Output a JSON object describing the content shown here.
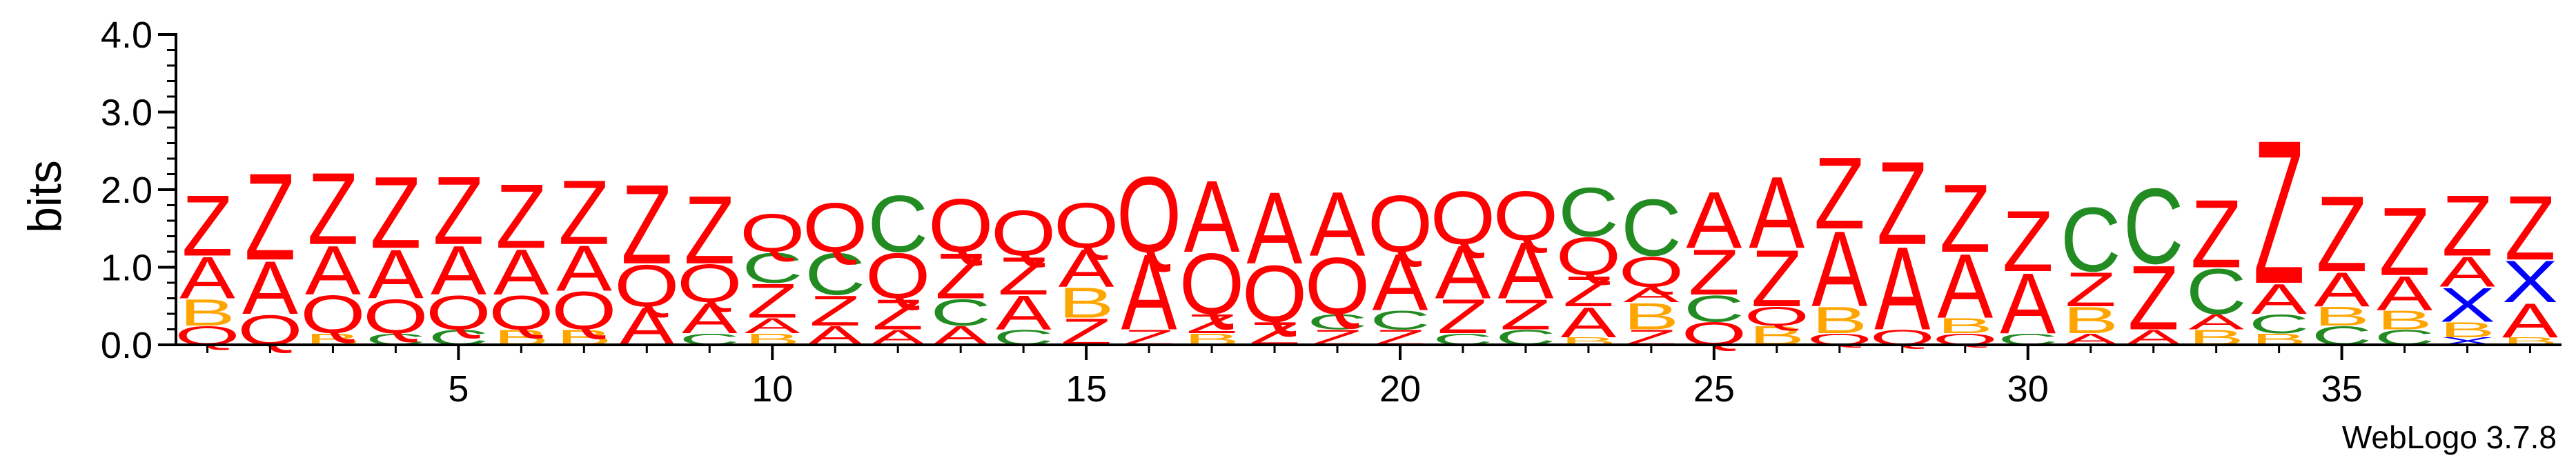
{
  "chart_data": {
    "type": "sequence-logo",
    "ylabel": "bits",
    "ylim": [
      0,
      4
    ],
    "yticks": [
      "0.0",
      "1.0",
      "2.0",
      "3.0",
      "4.0"
    ],
    "xlim": [
      0.5,
      38.5
    ],
    "xticks": [
      5,
      10,
      15,
      20,
      25,
      30,
      35
    ],
    "footer": "WebLogo 3.7.8",
    "colors": {
      "Z": "#ff0000",
      "A": "#ff0000",
      "Q": "#ff0000",
      "C": "#228b22",
      "B": "#ffa500",
      "X": "#0000ff"
    },
    "positions": [
      {
        "pos": 1,
        "stack": [
          [
            "Q",
            0.25
          ],
          [
            "B",
            0.35
          ],
          [
            "A",
            0.55
          ],
          [
            "Z",
            0.8
          ]
        ]
      },
      {
        "pos": 2,
        "stack": [
          [
            "Q",
            0.4
          ],
          [
            "A",
            0.7
          ],
          [
            "Z",
            1.15
          ]
        ]
      },
      {
        "pos": 3,
        "stack": [
          [
            "B",
            0.15
          ],
          [
            "Q",
            0.5
          ],
          [
            "A",
            0.65
          ],
          [
            "Z",
            0.95
          ]
        ]
      },
      {
        "pos": 4,
        "stack": [
          [
            "C",
            0.15
          ],
          [
            "Q",
            0.45
          ],
          [
            "A",
            0.65
          ],
          [
            "Z",
            0.95
          ]
        ]
      },
      {
        "pos": 5,
        "stack": [
          [
            "C",
            0.2
          ],
          [
            "Q",
            0.45
          ],
          [
            "A",
            0.65
          ],
          [
            "Z",
            0.9
          ]
        ]
      },
      {
        "pos": 6,
        "stack": [
          [
            "B",
            0.2
          ],
          [
            "Q",
            0.45
          ],
          [
            "A",
            0.6
          ],
          [
            "Z",
            0.85
          ]
        ]
      },
      {
        "pos": 7,
        "stack": [
          [
            "B",
            0.2
          ],
          [
            "Q",
            0.5
          ],
          [
            "A",
            0.6
          ],
          [
            "Z",
            0.85
          ]
        ]
      },
      {
        "pos": 8,
        "stack": [
          [
            "A",
            0.5
          ],
          [
            "Q",
            0.55
          ],
          [
            "Z",
            1.05
          ]
        ]
      },
      {
        "pos": 9,
        "stack": [
          [
            "C",
            0.15
          ],
          [
            "A",
            0.4
          ],
          [
            "Q",
            0.5
          ],
          [
            "Z",
            0.9
          ]
        ]
      },
      {
        "pos": 10,
        "stack": [
          [
            "B",
            0.15
          ],
          [
            "A",
            0.2
          ],
          [
            "Z",
            0.45
          ],
          [
            "C",
            0.4
          ],
          [
            "Q",
            0.5
          ]
        ]
      },
      {
        "pos": 11,
        "stack": [
          [
            "A",
            0.25
          ],
          [
            "Z",
            0.4
          ],
          [
            "C",
            0.55
          ],
          [
            "Q",
            0.65
          ]
        ]
      },
      {
        "pos": 12,
        "stack": [
          [
            "A",
            0.2
          ],
          [
            "Z",
            0.4
          ],
          [
            "Q",
            0.6
          ],
          [
            "C",
            0.75
          ]
        ]
      },
      {
        "pos": 13,
        "stack": [
          [
            "A",
            0.25
          ],
          [
            "C",
            0.35
          ],
          [
            "Z",
            0.6
          ],
          [
            "Q",
            0.7
          ]
        ]
      },
      {
        "pos": 14,
        "stack": [
          [
            "C",
            0.2
          ],
          [
            "A",
            0.45
          ],
          [
            "Z",
            0.5
          ],
          [
            "Q",
            0.6
          ]
        ]
      },
      {
        "pos": 15,
        "stack": [
          [
            "Z",
            0.35
          ],
          [
            "B",
            0.4
          ],
          [
            "A",
            0.5
          ],
          [
            "Q",
            0.6
          ]
        ]
      },
      {
        "pos": 16,
        "stack": [
          [
            "Z",
            0.2
          ],
          [
            "A",
            1.0
          ],
          [
            "Q",
            1.0
          ]
        ]
      },
      {
        "pos": 17,
        "stack": [
          [
            "B",
            0.15
          ],
          [
            "Z",
            0.25
          ],
          [
            "Q",
            0.8
          ],
          [
            "A",
            0.95
          ]
        ]
      },
      {
        "pos": 18,
        "stack": [
          [
            "Z",
            0.3
          ],
          [
            "Q",
            0.75
          ],
          [
            "A",
            0.95
          ]
        ]
      },
      {
        "pos": 19,
        "stack": [
          [
            "Z",
            0.2
          ],
          [
            "C",
            0.2
          ],
          [
            "Q",
            0.75
          ],
          [
            "A",
            0.85
          ]
        ]
      },
      {
        "pos": 20,
        "stack": [
          [
            "Z",
            0.2
          ],
          [
            "C",
            0.25
          ],
          [
            "A",
            0.75
          ],
          [
            "Q",
            0.75
          ]
        ]
      },
      {
        "pos": 21,
        "stack": [
          [
            "C",
            0.15
          ],
          [
            "Z",
            0.45
          ],
          [
            "A",
            0.7
          ],
          [
            "Q",
            0.7
          ]
        ]
      },
      {
        "pos": 22,
        "stack": [
          [
            "C",
            0.2
          ],
          [
            "Z",
            0.4
          ],
          [
            "A",
            0.75
          ],
          [
            "Q",
            0.65
          ]
        ]
      },
      {
        "pos": 23,
        "stack": [
          [
            "B",
            0.1
          ],
          [
            "A",
            0.4
          ],
          [
            "Z",
            0.4
          ],
          [
            "Q",
            0.5
          ],
          [
            "C",
            0.65
          ]
        ]
      },
      {
        "pos": 24,
        "stack": [
          [
            "Z",
            0.2
          ],
          [
            "B",
            0.35
          ],
          [
            "A",
            0.2
          ],
          [
            "Q",
            0.4
          ],
          [
            "C",
            0.75
          ]
        ]
      },
      {
        "pos": 25,
        "stack": [
          [
            "Q",
            0.3
          ],
          [
            "C",
            0.35
          ],
          [
            "Z",
            0.6
          ],
          [
            "A",
            0.75
          ]
        ]
      },
      {
        "pos": 26,
        "stack": [
          [
            "B",
            0.25
          ],
          [
            "Q",
            0.25
          ],
          [
            "Z",
            0.75
          ],
          [
            "A",
            0.95
          ]
        ]
      },
      {
        "pos": 27,
        "stack": [
          [
            "Q",
            0.15
          ],
          [
            "B",
            0.35
          ],
          [
            "A",
            1.0
          ],
          [
            "Z",
            0.95
          ]
        ]
      },
      {
        "pos": 28,
        "stack": [
          [
            "Q",
            0.2
          ],
          [
            "A",
            1.1
          ],
          [
            "Z",
            1.1
          ]
        ]
      },
      {
        "pos": 29,
        "stack": [
          [
            "Q",
            0.15
          ],
          [
            "B",
            0.2
          ],
          [
            "A",
            0.85
          ],
          [
            "Z",
            0.9
          ]
        ]
      },
      {
        "pos": 30,
        "stack": [
          [
            "C",
            0.15
          ],
          [
            "A",
            0.8
          ],
          [
            "Z",
            0.8
          ]
        ]
      },
      {
        "pos": 31,
        "stack": [
          [
            "A",
            0.15
          ],
          [
            "B",
            0.35
          ],
          [
            "Z",
            0.45
          ],
          [
            "C",
            0.85
          ]
        ]
      },
      {
        "pos": 32,
        "stack": [
          [
            "A",
            0.2
          ],
          [
            "Z",
            0.85
          ],
          [
            "C",
            1.0
          ]
        ]
      },
      {
        "pos": 33,
        "stack": [
          [
            "B",
            0.2
          ],
          [
            "A",
            0.2
          ],
          [
            "C",
            0.6
          ],
          [
            "Z",
            0.9
          ]
        ]
      },
      {
        "pos": 34,
        "stack": [
          [
            "B",
            0.15
          ],
          [
            "C",
            0.25
          ],
          [
            "A",
            0.4
          ],
          [
            "Z",
            1.9
          ]
        ]
      },
      {
        "pos": 35,
        "stack": [
          [
            "C",
            0.25
          ],
          [
            "B",
            0.25
          ],
          [
            "A",
            0.45
          ],
          [
            "Z",
            1.0
          ]
        ]
      },
      {
        "pos": 36,
        "stack": [
          [
            "C",
            0.2
          ],
          [
            "B",
            0.25
          ],
          [
            "A",
            0.45
          ],
          [
            "Z",
            0.9
          ]
        ]
      },
      {
        "pos": 37,
        "stack": [
          [
            "X",
            0.1
          ],
          [
            "B",
            0.2
          ],
          [
            "X",
            0.45
          ],
          [
            "A",
            0.4
          ],
          [
            "Z",
            0.8
          ]
        ]
      },
      {
        "pos": 38,
        "stack": [
          [
            "B",
            0.1
          ],
          [
            "A",
            0.45
          ],
          [
            "X",
            0.55
          ],
          [
            "Z",
            0.85
          ]
        ]
      }
    ]
  }
}
